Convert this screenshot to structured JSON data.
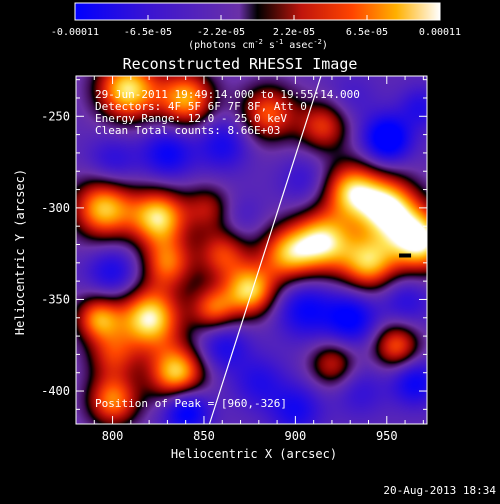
{
  "chart_data": {
    "type": "heatmap",
    "title": "Reconstructed RHESSI Image",
    "xlabel": "Heliocentric X (arcsec)",
    "ylabel": "Heliocentric Y (arcsec)",
    "xlim": [
      780,
      972
    ],
    "ylim": [
      -418,
      -228
    ],
    "xticks": [
      800,
      850,
      900,
      950
    ],
    "yticks": [
      -250,
      -300,
      -350,
      -400
    ],
    "colorbar": {
      "ticks": [
        "-0.00011",
        "-6.5e-05",
        "-2.2e-05",
        "2.2e-05",
        "6.5e-05",
        "0.00011"
      ],
      "unit_prefix": "(photons cm",
      "unit_exp1": "-2",
      "unit_mid": " s",
      "unit_exp2": "-1",
      "unit_mid2": " asec",
      "unit_exp3": "-2",
      "unit_suffix": ")",
      "range": [
        -0.00011,
        0.00011
      ]
    },
    "annotations": [
      "29-Jun-2011 19:49:14.000 to 19:55:14.000",
      "Detectors: 4F 5F 6F 7F 8F, Att 0",
      "Energy Range: 12.0 - 25.0 keV",
      "Clean    Total counts: 8.66E+03"
    ],
    "peak_label": "Position of Peak = [960,-326]",
    "limb_line": [
      [
        853,
        -418
      ],
      [
        914,
        -228
      ]
    ],
    "blobs": [
      [
        808,
        -235,
        0.9,
        12
      ],
      [
        840,
        -240,
        0.7,
        11
      ],
      [
        885,
        -248,
        0.5,
        11
      ],
      [
        915,
        -255,
        0.4,
        10
      ],
      [
        950,
        -262,
        -0.9,
        9
      ],
      [
        968,
        -245,
        -0.4,
        8
      ],
      [
        930,
        -240,
        -0.2,
        10
      ],
      [
        800,
        -275,
        -0.4,
        10
      ],
      [
        830,
        -270,
        -0.6,
        10
      ],
      [
        860,
        -265,
        -0.5,
        10
      ],
      [
        795,
        -300,
        0.8,
        12
      ],
      [
        825,
        -305,
        0.85,
        11
      ],
      [
        852,
        -300,
        0.2,
        9
      ],
      [
        870,
        -305,
        -0.2,
        9
      ],
      [
        905,
        -285,
        -0.3,
        10
      ],
      [
        930,
        -290,
        0.7,
        11
      ],
      [
        950,
        -300,
        0.95,
        12
      ],
      [
        968,
        -318,
        1.0,
        12
      ],
      [
        915,
        -318,
        0.85,
        12
      ],
      [
        895,
        -325,
        0.6,
        11
      ],
      [
        940,
        -330,
        0.7,
        11
      ],
      [
        800,
        -335,
        -0.5,
        10
      ],
      [
        830,
        -330,
        0.5,
        10
      ],
      [
        860,
        -325,
        0.4,
        10
      ],
      [
        875,
        -345,
        0.8,
        10
      ],
      [
        855,
        -355,
        0.5,
        9
      ],
      [
        820,
        -360,
        0.95,
        12
      ],
      [
        792,
        -360,
        0.6,
        9
      ],
      [
        905,
        -355,
        -0.6,
        11
      ],
      [
        930,
        -360,
        -0.7,
        10
      ],
      [
        960,
        -350,
        -0.4,
        10
      ],
      [
        800,
        -380,
        0.3,
        10
      ],
      [
        835,
        -390,
        0.85,
        11
      ],
      [
        860,
        -375,
        -0.5,
        10
      ],
      [
        880,
        -395,
        -0.4,
        10
      ],
      [
        800,
        -405,
        0.6,
        10
      ],
      [
        840,
        -410,
        -0.8,
        9
      ],
      [
        900,
        -410,
        -0.5,
        10
      ],
      [
        935,
        -400,
        -0.3,
        10
      ],
      [
        965,
        -395,
        -0.6,
        9
      ],
      [
        920,
        -385,
        0.3,
        9
      ],
      [
        955,
        -375,
        0.5,
        9
      ]
    ]
  },
  "stamp": "20-Aug-2013 18:34"
}
